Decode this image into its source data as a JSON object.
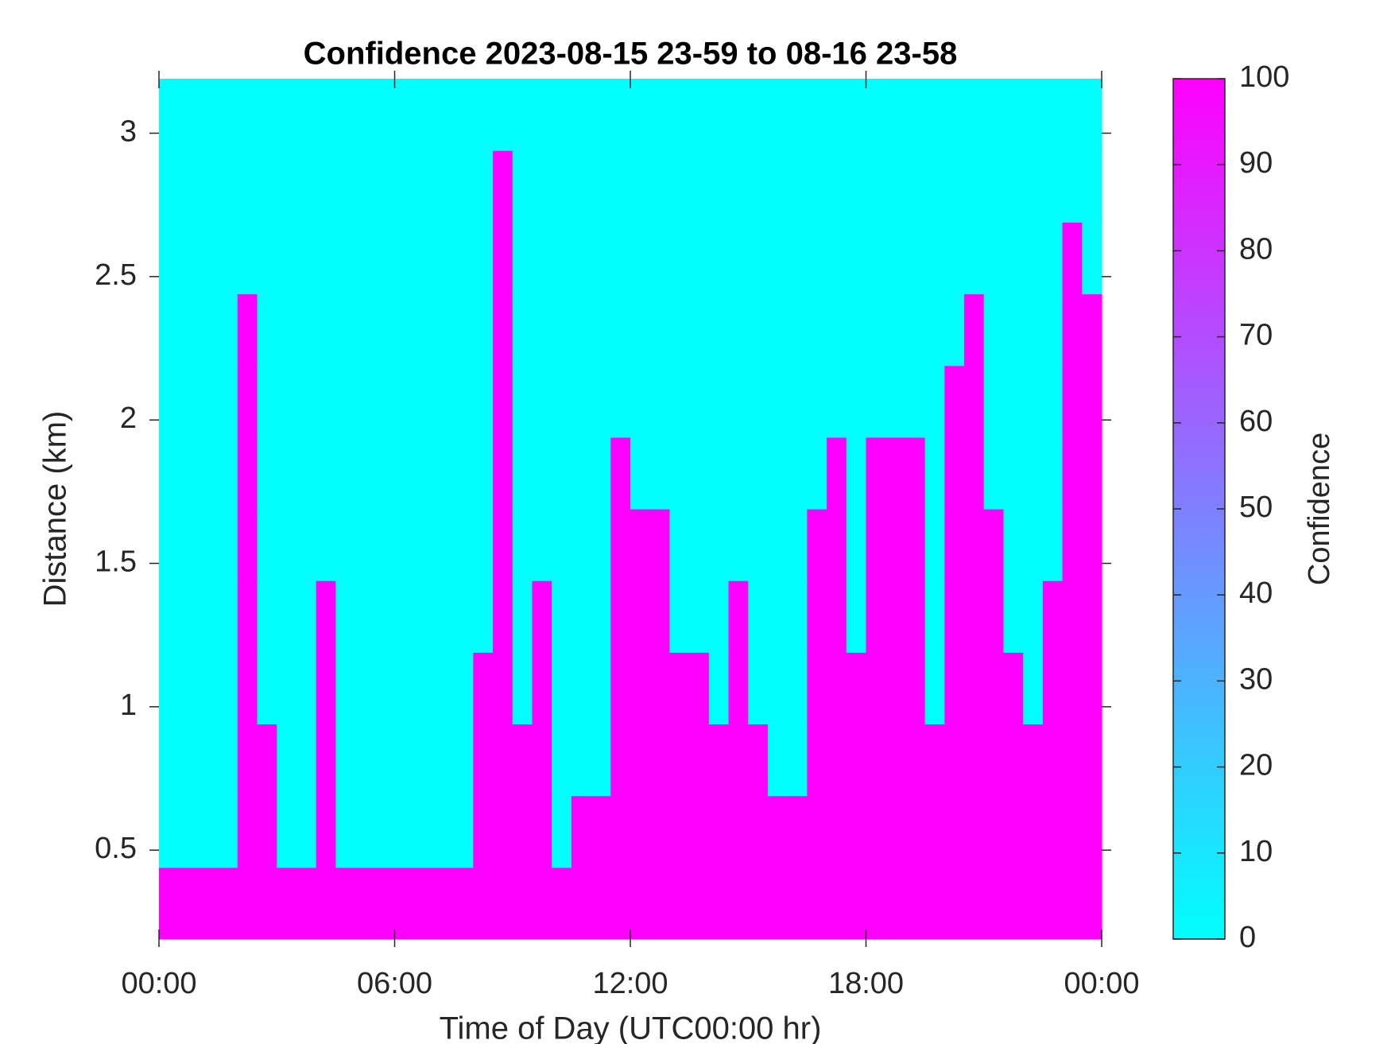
{
  "chart_data": {
    "type": "heatmap",
    "title": "Confidence 2023-08-15 23-59 to 08-16 23-58",
    "x_label": "Time of Day (UTC00:00 hr)",
    "y_label": "Distance (km)",
    "colorbar_label": "Confidence",
    "colormap": [
      "#00ffff",
      "#ff00ff"
    ],
    "x": [
      0.25,
      0.75,
      1.25,
      1.75,
      2.25,
      2.75,
      3.25,
      3.75,
      4.25,
      4.75,
      5.25,
      5.75,
      6.25,
      6.75,
      7.25,
      7.75,
      8.25,
      8.75,
      9.25,
      9.75,
      10.25,
      10.75,
      11.25,
      11.75,
      12.25,
      12.75,
      13.25,
      13.75,
      14.25,
      14.75,
      15.25,
      15.75,
      16.25,
      16.75,
      17.25,
      17.75,
      18.25,
      18.75,
      19.25,
      19.75,
      20.25,
      20.75,
      21.25,
      21.75,
      22.25,
      22.75,
      23.25,
      23.75
    ],
    "y": [
      0.315,
      0.565,
      0.815,
      1.065,
      1.315,
      1.565,
      1.815,
      2.065,
      2.315,
      2.565,
      2.815,
      3.065
    ],
    "z": [
      [
        100,
        100,
        100,
        100,
        100,
        100,
        100,
        100,
        100,
        100,
        100,
        100,
        100,
        100,
        100,
        100,
        100,
        100,
        100,
        100,
        100,
        100,
        100,
        100,
        100,
        100,
        100,
        100,
        100,
        100,
        100,
        100,
        100,
        100,
        100,
        100,
        100,
        100,
        100,
        100,
        100,
        100,
        100,
        100,
        100,
        100,
        100,
        100
      ],
      [
        0,
        0,
        0,
        0,
        100,
        100,
        0,
        0,
        100,
        0,
        0,
        0,
        0,
        0,
        0,
        0,
        100,
        100,
        100,
        100,
        0,
        100,
        100,
        100,
        100,
        100,
        100,
        100,
        100,
        100,
        100,
        100,
        100,
        100,
        100,
        100,
        100,
        100,
        100,
        100,
        100,
        100,
        100,
        100,
        100,
        100,
        100,
        100
      ],
      [
        0,
        0,
        0,
        0,
        100,
        100,
        0,
        0,
        100,
        0,
        0,
        0,
        0,
        0,
        0,
        0,
        100,
        100,
        100,
        100,
        0,
        0,
        0,
        100,
        100,
        100,
        100,
        100,
        100,
        100,
        100,
        0,
        0,
        100,
        100,
        100,
        100,
        100,
        100,
        100,
        100,
        100,
        100,
        100,
        100,
        100,
        100,
        100
      ],
      [
        0,
        0,
        0,
        0,
        100,
        0,
        0,
        0,
        100,
        0,
        0,
        0,
        0,
        0,
        0,
        0,
        100,
        100,
        0,
        100,
        0,
        0,
        0,
        100,
        100,
        100,
        100,
        100,
        0,
        100,
        0,
        0,
        0,
        100,
        100,
        100,
        100,
        100,
        100,
        0,
        100,
        100,
        100,
        100,
        0,
        100,
        100,
        100
      ],
      [
        0,
        0,
        0,
        0,
        100,
        0,
        0,
        0,
        100,
        0,
        0,
        0,
        0,
        0,
        0,
        0,
        0,
        100,
        0,
        100,
        0,
        0,
        0,
        100,
        100,
        100,
        0,
        0,
        0,
        100,
        0,
        0,
        0,
        100,
        100,
        0,
        100,
        100,
        100,
        0,
        100,
        100,
        100,
        0,
        0,
        100,
        100,
        100
      ],
      [
        0,
        0,
        0,
        0,
        100,
        0,
        0,
        0,
        0,
        0,
        0,
        0,
        0,
        0,
        0,
        0,
        0,
        100,
        0,
        0,
        0,
        0,
        0,
        100,
        100,
        100,
        0,
        0,
        0,
        0,
        0,
        0,
        0,
        100,
        100,
        0,
        100,
        100,
        100,
        0,
        100,
        100,
        100,
        0,
        0,
        0,
        100,
        100
      ],
      [
        0,
        0,
        0,
        0,
        100,
        0,
        0,
        0,
        0,
        0,
        0,
        0,
        0,
        0,
        0,
        0,
        0,
        100,
        0,
        0,
        0,
        0,
        0,
        100,
        0,
        0,
        0,
        0,
        0,
        0,
        0,
        0,
        0,
        0,
        100,
        0,
        100,
        100,
        100,
        0,
        100,
        100,
        0,
        0,
        0,
        0,
        100,
        100
      ],
      [
        0,
        0,
        0,
        0,
        100,
        0,
        0,
        0,
        0,
        0,
        0,
        0,
        0,
        0,
        0,
        0,
        0,
        100,
        0,
        0,
        0,
        0,
        0,
        0,
        0,
        0,
        0,
        0,
        0,
        0,
        0,
        0,
        0,
        0,
        0,
        0,
        0,
        0,
        0,
        0,
        100,
        100,
        0,
        0,
        0,
        0,
        100,
        100
      ],
      [
        0,
        0,
        0,
        0,
        100,
        0,
        0,
        0,
        0,
        0,
        0,
        0,
        0,
        0,
        0,
        0,
        0,
        100,
        0,
        0,
        0,
        0,
        0,
        0,
        0,
        0,
        0,
        0,
        0,
        0,
        0,
        0,
        0,
        0,
        0,
        0,
        0,
        0,
        0,
        0,
        0,
        100,
        0,
        0,
        0,
        0,
        100,
        100
      ],
      [
        0,
        0,
        0,
        0,
        0,
        0,
        0,
        0,
        0,
        0,
        0,
        0,
        0,
        0,
        0,
        0,
        0,
        100,
        0,
        0,
        0,
        0,
        0,
        0,
        0,
        0,
        0,
        0,
        0,
        0,
        0,
        0,
        0,
        0,
        0,
        0,
        0,
        0,
        0,
        0,
        0,
        0,
        0,
        0,
        0,
        0,
        100,
        0
      ],
      [
        0,
        0,
        0,
        0,
        0,
        0,
        0,
        0,
        0,
        0,
        0,
        0,
        0,
        0,
        0,
        0,
        0,
        100,
        0,
        0,
        0,
        0,
        0,
        0,
        0,
        0,
        0,
        0,
        0,
        0,
        0,
        0,
        0,
        0,
        0,
        0,
        0,
        0,
        0,
        0,
        0,
        0,
        0,
        0,
        0,
        0,
        0,
        0
      ],
      [
        0,
        0,
        0,
        0,
        0,
        0,
        0,
        0,
        0,
        0,
        0,
        0,
        0,
        0,
        0,
        0,
        0,
        0,
        0,
        0,
        0,
        0,
        0,
        0,
        0,
        0,
        0,
        0,
        0,
        0,
        0,
        0,
        0,
        0,
        0,
        0,
        0,
        0,
        0,
        0,
        0,
        0,
        0,
        0,
        0,
        0,
        0,
        0
      ]
    ],
    "xlim": [
      0,
      24
    ],
    "xticks": [
      {
        "value": 0,
        "label": "00:00"
      },
      {
        "value": 6,
        "label": "06:00"
      },
      {
        "value": 12,
        "label": "12:00"
      },
      {
        "value": 18,
        "label": "18:00"
      },
      {
        "value": 24,
        "label": "00:00"
      }
    ],
    "ylim": [
      0.19,
      3.19
    ],
    "yticks": [
      0.5,
      1,
      1.5,
      2,
      2.5,
      3
    ],
    "zlim": [
      0,
      100
    ],
    "zticks": [
      0,
      10,
      20,
      30,
      40,
      50,
      60,
      70,
      80,
      90,
      100
    ]
  }
}
